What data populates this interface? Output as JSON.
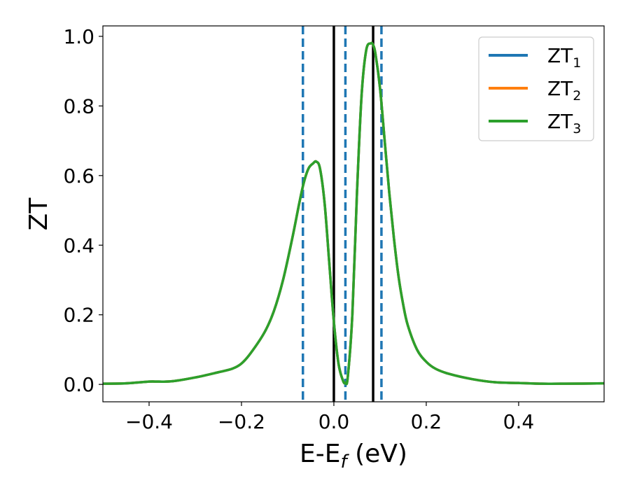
{
  "chart_data": {
    "type": "line",
    "xlabel": "E-E_f (eV)",
    "ylabel": "ZT",
    "xlim": [
      -0.5,
      0.585
    ],
    "ylim": [
      -0.05,
      1.03
    ],
    "grid": false,
    "legend_position": "top-right",
    "x_ticks": [
      -0.4,
      -0.2,
      0.0,
      0.2,
      0.4
    ],
    "x_tick_labels": [
      "−0.4",
      "−0.2",
      "0.0",
      "0.2",
      "0.4"
    ],
    "y_ticks": [
      0.0,
      0.2,
      0.4,
      0.6,
      0.8,
      1.0
    ],
    "y_tick_labels": [
      "0.0",
      "0.2",
      "0.4",
      "0.6",
      "0.8",
      "1.0"
    ],
    "series": [
      {
        "name": "ZT_1",
        "legend_base": "ZT",
        "legend_sub": "1",
        "color": "#1f77b4",
        "x": [
          -0.5,
          -0.45,
          -0.4,
          -0.38,
          -0.35,
          -0.3,
          -0.25,
          -0.22,
          -0.2,
          -0.18,
          -0.15,
          -0.13,
          -0.11,
          -0.09,
          -0.075,
          -0.065,
          -0.055,
          -0.045,
          -0.038,
          -0.03,
          -0.02,
          -0.01,
          0.0,
          0.01,
          0.02,
          0.025,
          0.03,
          0.04,
          0.05,
          0.06,
          0.07,
          0.08,
          0.085,
          0.09,
          0.1,
          0.11,
          0.12,
          0.13,
          0.14,
          0.15,
          0.16,
          0.18,
          0.2,
          0.22,
          0.25,
          0.3,
          0.35,
          0.4,
          0.45,
          0.5,
          0.585
        ],
        "y": [
          0.002,
          0.003,
          0.008,
          0.008,
          0.009,
          0.02,
          0.035,
          0.045,
          0.06,
          0.09,
          0.15,
          0.21,
          0.3,
          0.42,
          0.52,
          0.58,
          0.62,
          0.635,
          0.64,
          0.62,
          0.52,
          0.35,
          0.18,
          0.06,
          0.01,
          0.005,
          0.02,
          0.2,
          0.55,
          0.83,
          0.96,
          0.98,
          0.975,
          0.95,
          0.85,
          0.7,
          0.55,
          0.42,
          0.31,
          0.23,
          0.17,
          0.1,
          0.065,
          0.045,
          0.03,
          0.015,
          0.006,
          0.004,
          0.002,
          0.002,
          0.003
        ]
      },
      {
        "name": "ZT_2",
        "legend_base": "ZT",
        "legend_sub": "2",
        "color": "#ff7f0e",
        "x": [
          -0.5,
          -0.45,
          -0.4,
          -0.38,
          -0.35,
          -0.3,
          -0.25,
          -0.22,
          -0.2,
          -0.18,
          -0.15,
          -0.13,
          -0.11,
          -0.09,
          -0.075,
          -0.065,
          -0.055,
          -0.045,
          -0.038,
          -0.03,
          -0.02,
          -0.01,
          0.0,
          0.01,
          0.02,
          0.025,
          0.03,
          0.04,
          0.05,
          0.06,
          0.07,
          0.08,
          0.085,
          0.09,
          0.1,
          0.11,
          0.12,
          0.13,
          0.14,
          0.15,
          0.16,
          0.18,
          0.2,
          0.22,
          0.25,
          0.3,
          0.35,
          0.4,
          0.45,
          0.5,
          0.585
        ],
        "y": [
          0.002,
          0.003,
          0.008,
          0.008,
          0.009,
          0.02,
          0.035,
          0.045,
          0.06,
          0.09,
          0.15,
          0.21,
          0.3,
          0.42,
          0.52,
          0.58,
          0.62,
          0.635,
          0.64,
          0.62,
          0.52,
          0.35,
          0.18,
          0.06,
          0.01,
          0.005,
          0.02,
          0.2,
          0.55,
          0.83,
          0.96,
          0.98,
          0.975,
          0.95,
          0.85,
          0.7,
          0.55,
          0.42,
          0.31,
          0.23,
          0.17,
          0.1,
          0.065,
          0.045,
          0.03,
          0.015,
          0.006,
          0.004,
          0.002,
          0.002,
          0.003
        ]
      },
      {
        "name": "ZT_3",
        "legend_base": "ZT",
        "legend_sub": "3",
        "color": "#2ca02c",
        "x": [
          -0.5,
          -0.45,
          -0.4,
          -0.38,
          -0.35,
          -0.3,
          -0.25,
          -0.22,
          -0.2,
          -0.18,
          -0.15,
          -0.13,
          -0.11,
          -0.09,
          -0.075,
          -0.065,
          -0.055,
          -0.045,
          -0.038,
          -0.03,
          -0.02,
          -0.01,
          0.0,
          0.01,
          0.02,
          0.025,
          0.03,
          0.04,
          0.05,
          0.06,
          0.07,
          0.08,
          0.085,
          0.09,
          0.1,
          0.11,
          0.12,
          0.13,
          0.14,
          0.15,
          0.16,
          0.18,
          0.2,
          0.22,
          0.25,
          0.3,
          0.35,
          0.4,
          0.45,
          0.5,
          0.585
        ],
        "y": [
          0.002,
          0.003,
          0.008,
          0.008,
          0.009,
          0.02,
          0.035,
          0.045,
          0.06,
          0.09,
          0.15,
          0.21,
          0.3,
          0.42,
          0.52,
          0.58,
          0.62,
          0.635,
          0.64,
          0.62,
          0.52,
          0.35,
          0.18,
          0.06,
          0.01,
          0.005,
          0.02,
          0.2,
          0.55,
          0.83,
          0.96,
          0.98,
          0.975,
          0.95,
          0.85,
          0.7,
          0.55,
          0.42,
          0.31,
          0.23,
          0.17,
          0.1,
          0.065,
          0.045,
          0.03,
          0.015,
          0.006,
          0.004,
          0.002,
          0.002,
          0.003
        ]
      }
    ],
    "vertical_lines": [
      {
        "x": -0.067,
        "style": "dashed",
        "color": "#1f77b4"
      },
      {
        "x": 0.0,
        "style": "solid",
        "color": "#000000"
      },
      {
        "x": 0.025,
        "style": "dashed",
        "color": "#1f77b4"
      },
      {
        "x": 0.085,
        "style": "solid",
        "color": "#000000"
      },
      {
        "x": 0.103,
        "style": "dashed",
        "color": "#1f77b4"
      }
    ]
  }
}
